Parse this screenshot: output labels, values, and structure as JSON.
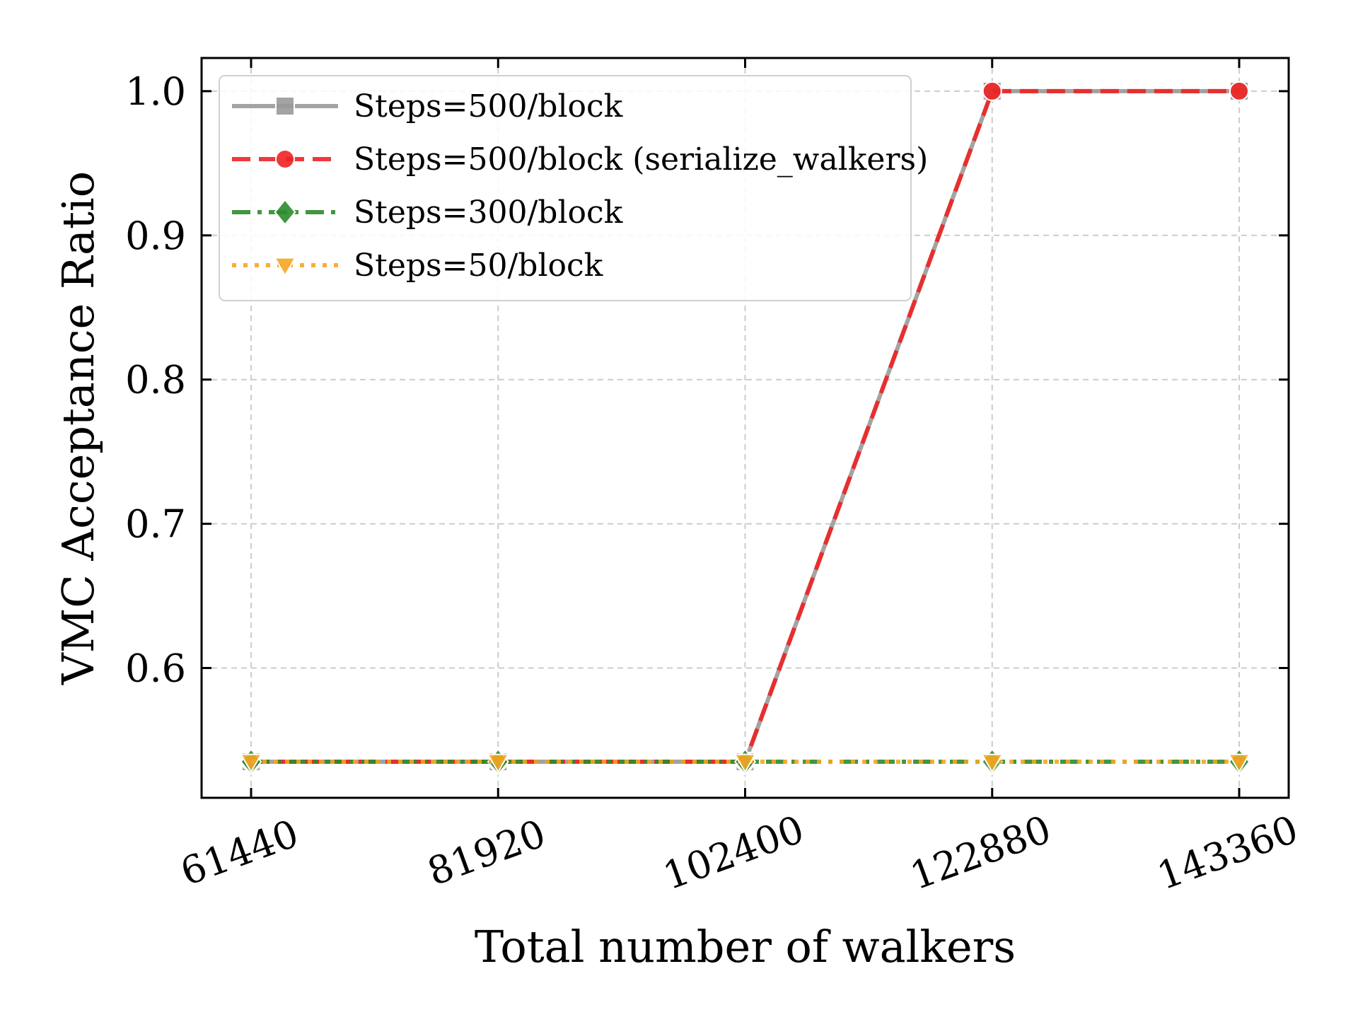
{
  "chart_data": {
    "type": "line",
    "title": "",
    "xlabel": "Total number of walkers",
    "ylabel": "VMC Acceptance Ratio",
    "categories": [
      "61440",
      "81920",
      "102400",
      "122880",
      "143360"
    ],
    "x": [
      61440,
      81920,
      102400,
      122880,
      143360
    ],
    "ylim": [
      0.51,
      1.023
    ],
    "yticks": [
      0.6,
      0.7,
      0.8,
      0.9,
      1.0
    ],
    "ytick_labels": [
      "0.6",
      "0.7",
      "0.8",
      "0.9",
      "1.0"
    ],
    "grid": true,
    "legend_position": "top-left",
    "series": [
      {
        "name": "Steps=500/block",
        "values": [
          0.535,
          0.535,
          0.535,
          1.0,
          1.0
        ],
        "color": "#999999",
        "marker": "square",
        "linestyle": "solid"
      },
      {
        "name": "Steps=500/block (serialize_walkers)",
        "values": [
          0.535,
          0.535,
          0.535,
          1.0,
          1.0
        ],
        "color": "#ee2222",
        "marker": "circle",
        "linestyle": "dashed"
      },
      {
        "name": "Steps=300/block",
        "values": [
          0.535,
          0.535,
          0.535,
          0.535,
          0.535
        ],
        "color": "#2e8b2e",
        "marker": "diamond",
        "linestyle": "dashdot"
      },
      {
        "name": "Steps=50/block",
        "values": [
          0.535,
          0.535,
          0.535,
          0.535,
          0.535
        ],
        "color": "#f5a623",
        "marker": "triangle-down",
        "linestyle": "dotted"
      }
    ]
  }
}
